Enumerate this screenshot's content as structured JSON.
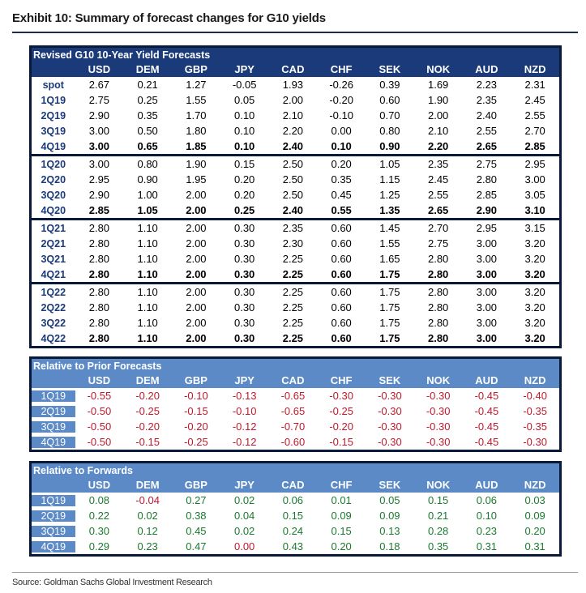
{
  "title": "Exhibit 10: Summary of forecast changes for G10 yields",
  "source": "Source: Goldman Sachs Global Investment Research",
  "currencies": [
    "USD",
    "DEM",
    "GBP",
    "JPY",
    "CAD",
    "CHF",
    "SEK",
    "NOK",
    "AUD",
    "NZD"
  ],
  "forecasts": {
    "title": "Revised G10 10-Year Yield Forecasts",
    "groups": [
      [
        {
          "label": "spot",
          "values": [
            "2.67",
            "0.21",
            "1.27",
            "-0.05",
            "1.93",
            "-0.26",
            "0.39",
            "1.69",
            "2.23",
            "2.31"
          ]
        },
        {
          "label": "1Q19",
          "values": [
            "2.75",
            "0.25",
            "1.55",
            "0.05",
            "2.00",
            "-0.20",
            "0.60",
            "1.90",
            "2.35",
            "2.45"
          ]
        },
        {
          "label": "2Q19",
          "values": [
            "2.90",
            "0.35",
            "1.70",
            "0.10",
            "2.10",
            "-0.10",
            "0.70",
            "2.00",
            "2.40",
            "2.55"
          ]
        },
        {
          "label": "3Q19",
          "values": [
            "3.00",
            "0.50",
            "1.80",
            "0.10",
            "2.20",
            "0.00",
            "0.80",
            "2.10",
            "2.55",
            "2.70"
          ]
        },
        {
          "label": "4Q19",
          "values": [
            "3.00",
            "0.65",
            "1.85",
            "0.10",
            "2.40",
            "0.10",
            "0.90",
            "2.20",
            "2.65",
            "2.85"
          ]
        }
      ],
      [
        {
          "label": "1Q20",
          "values": [
            "3.00",
            "0.80",
            "1.90",
            "0.15",
            "2.50",
            "0.20",
            "1.05",
            "2.35",
            "2.75",
            "2.95"
          ]
        },
        {
          "label": "2Q20",
          "values": [
            "2.95",
            "0.90",
            "1.95",
            "0.20",
            "2.50",
            "0.35",
            "1.15",
            "2.45",
            "2.80",
            "3.00"
          ]
        },
        {
          "label": "3Q20",
          "values": [
            "2.90",
            "1.00",
            "2.00",
            "0.20",
            "2.50",
            "0.45",
            "1.25",
            "2.55",
            "2.85",
            "3.05"
          ]
        },
        {
          "label": "4Q20",
          "values": [
            "2.85",
            "1.05",
            "2.00",
            "0.25",
            "2.40",
            "0.55",
            "1.35",
            "2.65",
            "2.90",
            "3.10"
          ]
        }
      ],
      [
        {
          "label": "1Q21",
          "values": [
            "2.80",
            "1.10",
            "2.00",
            "0.30",
            "2.35",
            "0.60",
            "1.45",
            "2.70",
            "2.95",
            "3.15"
          ]
        },
        {
          "label": "2Q21",
          "values": [
            "2.80",
            "1.10",
            "2.00",
            "0.30",
            "2.30",
            "0.60",
            "1.55",
            "2.75",
            "3.00",
            "3.20"
          ]
        },
        {
          "label": "3Q21",
          "values": [
            "2.80",
            "1.10",
            "2.00",
            "0.30",
            "2.25",
            "0.60",
            "1.65",
            "2.80",
            "3.00",
            "3.20"
          ]
        },
        {
          "label": "4Q21",
          "values": [
            "2.80",
            "1.10",
            "2.00",
            "0.30",
            "2.25",
            "0.60",
            "1.75",
            "2.80",
            "3.00",
            "3.20"
          ]
        }
      ],
      [
        {
          "label": "1Q22",
          "values": [
            "2.80",
            "1.10",
            "2.00",
            "0.30",
            "2.25",
            "0.60",
            "1.75",
            "2.80",
            "3.00",
            "3.20"
          ]
        },
        {
          "label": "2Q22",
          "values": [
            "2.80",
            "1.10",
            "2.00",
            "0.30",
            "2.25",
            "0.60",
            "1.75",
            "2.80",
            "3.00",
            "3.20"
          ]
        },
        {
          "label": "3Q22",
          "values": [
            "2.80",
            "1.10",
            "2.00",
            "0.30",
            "2.25",
            "0.60",
            "1.75",
            "2.80",
            "3.00",
            "3.20"
          ]
        },
        {
          "label": "4Q22",
          "values": [
            "2.80",
            "1.10",
            "2.00",
            "0.30",
            "2.25",
            "0.60",
            "1.75",
            "2.80",
            "3.00",
            "3.20"
          ]
        }
      ]
    ]
  },
  "prior": {
    "title": "Relative to Prior Forecasts",
    "rows": [
      {
        "label": "1Q19",
        "values": [
          "-0.55",
          "-0.20",
          "-0.10",
          "-0.13",
          "-0.65",
          "-0.30",
          "-0.30",
          "-0.30",
          "-0.45",
          "-0.40"
        ]
      },
      {
        "label": "2Q19",
        "values": [
          "-0.50",
          "-0.25",
          "-0.15",
          "-0.10",
          "-0.65",
          "-0.25",
          "-0.30",
          "-0.30",
          "-0.45",
          "-0.35"
        ]
      },
      {
        "label": "3Q19",
        "values": [
          "-0.50",
          "-0.20",
          "-0.20",
          "-0.12",
          "-0.70",
          "-0.20",
          "-0.30",
          "-0.30",
          "-0.45",
          "-0.35"
        ]
      },
      {
        "label": "4Q19",
        "values": [
          "-0.50",
          "-0.15",
          "-0.25",
          "-0.12",
          "-0.60",
          "-0.15",
          "-0.30",
          "-0.30",
          "-0.45",
          "-0.30"
        ]
      }
    ]
  },
  "forwards": {
    "title": "Relative to Forwards",
    "rows": [
      {
        "label": "1Q19",
        "values": [
          "0.08",
          "-0.04",
          "0.27",
          "0.02",
          "0.06",
          "0.01",
          "0.05",
          "0.15",
          "0.06",
          "0.03"
        ]
      },
      {
        "label": "2Q19",
        "values": [
          "0.22",
          "0.02",
          "0.38",
          "0.04",
          "0.15",
          "0.09",
          "0.09",
          "0.21",
          "0.10",
          "0.09"
        ]
      },
      {
        "label": "3Q19",
        "values": [
          "0.30",
          "0.12",
          "0.45",
          "0.02",
          "0.24",
          "0.15",
          "0.13",
          "0.28",
          "0.23",
          "0.20"
        ]
      },
      {
        "label": "4Q19",
        "values": [
          "0.29",
          "0.23",
          "0.47",
          "0.00",
          "0.43",
          "0.20",
          "0.18",
          "0.35",
          "0.31",
          "0.31"
        ]
      }
    ]
  }
}
